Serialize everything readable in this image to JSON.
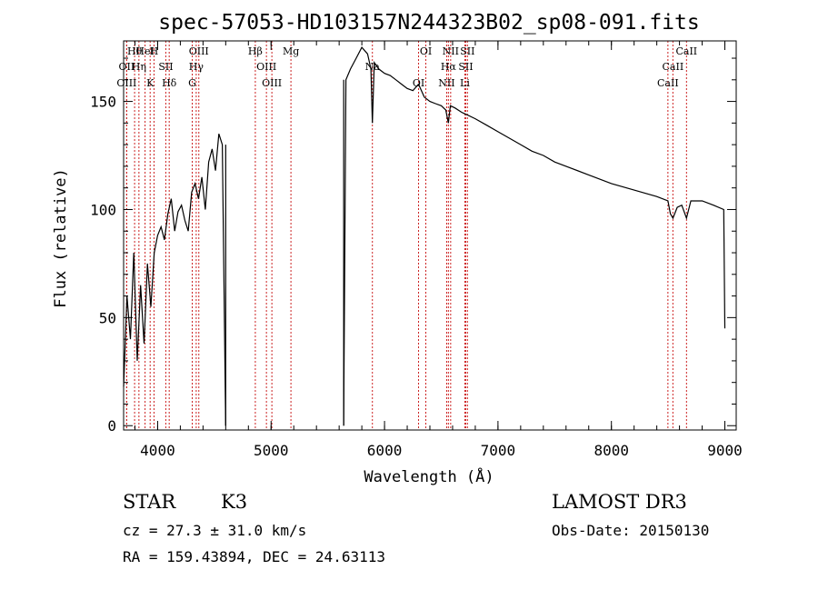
{
  "chart_data": {
    "type": "line",
    "title": "spec-57053-HD103157N244323B02_sp08-091.fits",
    "xlabel": "Wavelength (Å)",
    "ylabel": "Flux (relative)",
    "xlim": [
      3700,
      9100
    ],
    "ylim": [
      -2,
      178
    ],
    "xticks": [
      4000,
      5000,
      6000,
      7000,
      8000,
      9000
    ],
    "yticks": [
      0,
      50,
      100,
      150
    ],
    "gap": [
      4600,
      5640
    ],
    "series": [
      {
        "name": "spectrum",
        "x": [
          3700,
          3730,
          3760,
          3790,
          3820,
          3850,
          3880,
          3910,
          3940,
          3970,
          4000,
          4030,
          4060,
          4090,
          4120,
          4150,
          4180,
          4210,
          4240,
          4270,
          4300,
          4330,
          4360,
          4390,
          4420,
          4450,
          4480,
          4510,
          4540,
          4570,
          4600,
          5640,
          5660,
          5700,
          5750,
          5800,
          5850,
          5880,
          5893,
          5910,
          5950,
          6000,
          6050,
          6100,
          6150,
          6200,
          6250,
          6300,
          6350,
          6400,
          6450,
          6500,
          6540,
          6563,
          6580,
          6620,
          6680,
          6720,
          6800,
          6900,
          7000,
          7100,
          7200,
          7300,
          7400,
          7500,
          7600,
          7800,
          8000,
          8200,
          8400,
          8498,
          8520,
          8542,
          8580,
          8620,
          8662,
          8700,
          8800,
          8900,
          8990,
          9000
        ],
        "values": [
          18,
          60,
          40,
          80,
          30,
          65,
          38,
          75,
          55,
          80,
          88,
          92,
          86,
          98,
          105,
          90,
          99,
          102,
          95,
          90,
          108,
          112,
          105,
          115,
          100,
          122,
          128,
          118,
          135,
          130,
          0,
          0,
          160,
          165,
          170,
          175,
          172,
          165,
          140,
          168,
          165,
          163,
          162,
          160,
          158,
          156,
          155,
          158,
          152,
          150,
          149,
          148,
          146,
          140,
          148,
          147,
          145,
          144,
          142,
          139,
          136,
          133,
          130,
          127,
          125,
          122,
          120,
          116,
          112,
          109,
          106,
          104,
          98,
          96,
          101,
          102,
          96,
          104,
          104,
          102,
          100,
          45
        ]
      }
    ],
    "lines": [
      {
        "label": "Hθ",
        "wavelength": 3797
      },
      {
        "label": "OII",
        "wavelength": 3727
      },
      {
        "label": "OIII",
        "wavelength": 3727
      },
      {
        "label": "HeI",
        "wavelength": 3889
      },
      {
        "label": "Hη",
        "wavelength": 3835
      },
      {
        "label": "K",
        "wavelength": 3934
      },
      {
        "label": "H",
        "wavelength": 3968
      },
      {
        "label": "SII",
        "wavelength": 4072
      },
      {
        "label": "Hδ",
        "wavelength": 4102
      },
      {
        "label": "OIII",
        "wavelength": 4363
      },
      {
        "label": "Hγ",
        "wavelength": 4340
      },
      {
        "label": "G",
        "wavelength": 4305
      },
      {
        "label": "Hβ",
        "wavelength": 4861
      },
      {
        "label": "OIII",
        "wavelength": 4959
      },
      {
        "label": "OIII",
        "wavelength": 5007
      },
      {
        "label": "Mg",
        "wavelength": 5175
      },
      {
        "label": "Na",
        "wavelength": 5893
      },
      {
        "label": "OI",
        "wavelength": 6300
      },
      {
        "label": "OI",
        "wavelength": 6364
      },
      {
        "label": "Hα",
        "wavelength": 6563
      },
      {
        "label": "NII",
        "wavelength": 6548
      },
      {
        "label": "NII",
        "wavelength": 6583
      },
      {
        "label": "SII",
        "wavelength": 6716
      },
      {
        "label": "Li",
        "wavelength": 6708
      },
      {
        "label": "SII",
        "wavelength": 6731
      },
      {
        "label": "CaII",
        "wavelength": 8542
      },
      {
        "label": "CaII",
        "wavelength": 8498
      },
      {
        "label": "CaII",
        "wavelength": 8662
      }
    ]
  },
  "info": {
    "class": "STAR",
    "subclass": "K3",
    "survey": "LAMOST DR3",
    "cz": "cz = 27.3 ± 31.0 km/s",
    "obs_date": "Obs-Date: 20150130",
    "coords": "RA = 159.43894, DEC =  24.63113"
  }
}
